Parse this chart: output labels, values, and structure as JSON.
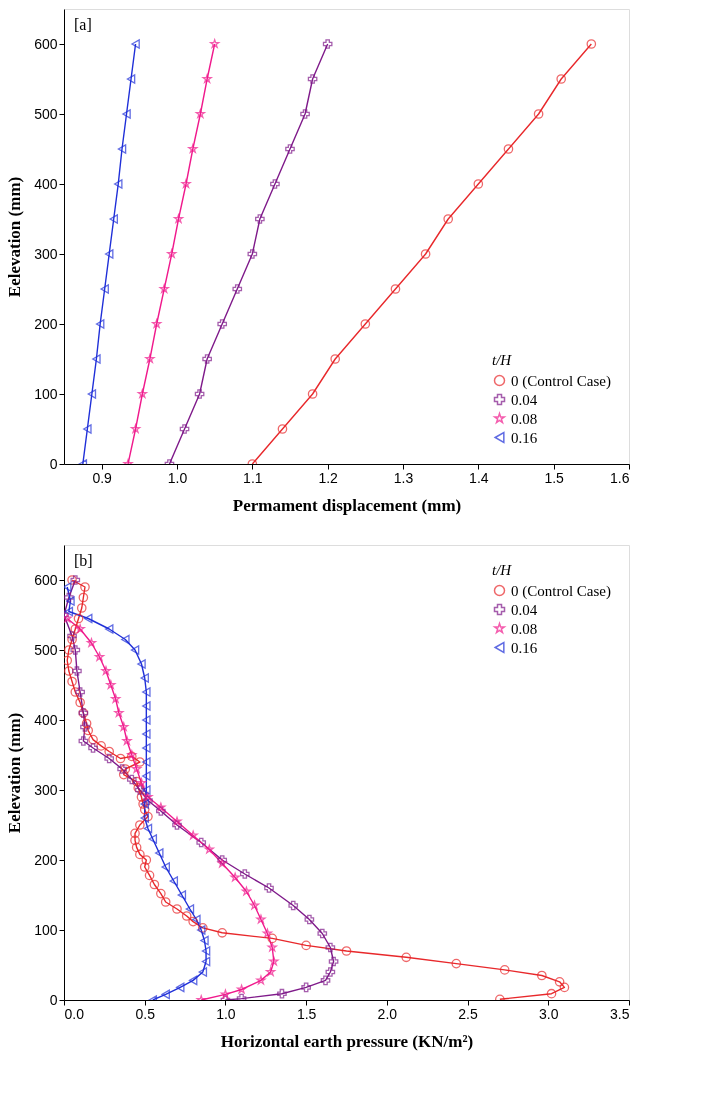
{
  "chart_data": [
    {
      "type": "line",
      "annotations": [
        "[a]"
      ],
      "xlabel": "Permament displacement (mm)",
      "ylabel": "Eelevation (mm)",
      "legend_title": "t/H",
      "legend": "bottom right",
      "grid": false,
      "xlim": [
        0.85,
        1.6
      ],
      "xticks": [
        0.9,
        {
          "value": 1.0,
          "label": "1.0"
        },
        1.1,
        1.2,
        1.3,
        1.4,
        1.5,
        1.6
      ],
      "ylim": [
        0,
        650
      ],
      "yticks": [
        0,
        100,
        200,
        300,
        400,
        500,
        600
      ],
      "series": [
        {
          "name": "0 (Control Case)",
          "color": "#e8282b",
          "marker": "circle",
          "x": [
            1.1,
            1.14,
            1.18,
            1.21,
            1.25,
            1.29,
            1.33,
            1.36,
            1.4,
            1.44,
            1.48,
            1.51,
            1.55
          ],
          "values": [
            0,
            50,
            100,
            150,
            200,
            250,
            300,
            350,
            400,
            450,
            500,
            550,
            600
          ]
        },
        {
          "name": "0.04",
          "color": "#7f1a8a",
          "marker": "cross",
          "x": [
            0.99,
            1.01,
            1.03,
            1.04,
            1.06,
            1.08,
            1.1,
            1.11,
            1.13,
            1.15,
            1.17,
            1.18,
            1.2
          ],
          "values": [
            0,
            50,
            100,
            150,
            200,
            250,
            300,
            350,
            400,
            450,
            500,
            550,
            600
          ]
        },
        {
          "name": "0.08",
          "color": "#f0198c",
          "marker": "star",
          "x": [
            0.935,
            0.945,
            0.954,
            0.964,
            0.973,
            0.983,
            0.993,
            1.002,
            1.012,
            1.021,
            1.031,
            1.04,
            1.05
          ],
          "values": [
            0,
            50,
            100,
            150,
            200,
            250,
            300,
            350,
            400,
            450,
            500,
            550,
            600
          ]
        },
        {
          "name": "0.16",
          "color": "#1f2fd8",
          "marker": "triangle",
          "x": [
            0.875,
            0.881,
            0.887,
            0.893,
            0.898,
            0.904,
            0.91,
            0.916,
            0.922,
            0.927,
            0.933,
            0.939,
            0.945
          ],
          "values": [
            0,
            50,
            100,
            150,
            200,
            250,
            300,
            350,
            400,
            450,
            500,
            550,
            600
          ]
        }
      ]
    },
    {
      "type": "line",
      "annotations": [
        "[b]"
      ],
      "xlabel": "Horizontal earth pressure (KN/m²)",
      "ylabel": "Eelevation (mm)",
      "legend_title": "t/H",
      "legend": "top right",
      "grid": false,
      "xlim": [
        0,
        3.5
      ],
      "xticks": [
        {
          "value": 0,
          "label": "0.0"
        },
        0.5,
        {
          "value": 1,
          "label": "1.0"
        },
        1.5,
        {
          "value": 2,
          "label": "2.0"
        },
        2.5,
        {
          "value": 3,
          "label": "3.0"
        },
        3.5
      ],
      "ylim": [
        0,
        650
      ],
      "yticks": [
        0,
        100,
        200,
        300,
        400,
        500,
        600
      ],
      "series": [
        {
          "name": "0 (Control Case)",
          "color": "#e8282b",
          "marker": "circle",
          "x": [
            0.05,
            0.13,
            0.12,
            0.11,
            0.09,
            0.07,
            0.05,
            0.03,
            0.02,
            0.03,
            0.05,
            0.07,
            0.1,
            0.12,
            0.14,
            0.15,
            0.18,
            0.23,
            0.28,
            0.35,
            0.42,
            0.47,
            0.38,
            0.37,
            0.45,
            0.46,
            0.48,
            0.49,
            0.5,
            0.52,
            0.47,
            0.44,
            0.44,
            0.45,
            0.47,
            0.51,
            0.5,
            0.53,
            0.56,
            0.6,
            0.63,
            0.7,
            0.76,
            0.8,
            0.86,
            0.98,
            1.29,
            1.5,
            1.75,
            2.12,
            2.43,
            2.73,
            2.96,
            3.07,
            3.1,
            3.02,
            2.7
          ],
          "values": [
            600,
            590,
            575,
            560,
            545,
            530,
            515,
            500,
            485,
            470,
            455,
            440,
            425,
            410,
            395,
            385,
            372,
            363,
            355,
            345,
            348,
            340,
            330,
            322,
            312,
            303,
            290,
            280,
            272,
            262,
            250,
            238,
            228,
            218,
            208,
            200,
            190,
            178,
            165,
            152,
            140,
            130,
            120,
            112,
            103,
            96,
            88,
            78,
            70,
            61,
            52,
            43,
            35,
            26,
            18,
            9,
            1
          ]
        },
        {
          "name": "0.04",
          "color": "#7f1a8a",
          "marker": "cross",
          "x": [
            0.07,
            0.03,
            0.0,
            0.05,
            0.07,
            0.08,
            0.1,
            0.12,
            0.13,
            0.12,
            0.18,
            0.28,
            0.36,
            0.42,
            0.47,
            0.52,
            0.6,
            0.7,
            0.85,
            0.98,
            1.12,
            1.27,
            1.42,
            1.52,
            1.6,
            1.65,
            1.67,
            1.65,
            1.62,
            1.5,
            1.35,
            1.1,
            1.0
          ],
          "values": [
            600,
            575,
            550,
            520,
            500,
            470,
            440,
            410,
            390,
            370,
            360,
            345,
            330,
            315,
            300,
            285,
            270,
            250,
            225,
            200,
            180,
            160,
            135,
            115,
            95,
            75,
            55,
            40,
            28,
            18,
            9,
            2,
            0
          ]
        },
        {
          "name": "0.08",
          "color": "#f0198c",
          "marker": "star",
          "x": [
            0.02,
            0.1,
            0.17,
            0.22,
            0.26,
            0.29,
            0.32,
            0.34,
            0.37,
            0.39,
            0.42,
            0.45,
            0.48,
            0.52,
            0.6,
            0.7,
            0.8,
            0.9,
            0.98,
            1.06,
            1.13,
            1.18,
            1.22,
            1.26,
            1.29,
            1.3,
            1.28,
            1.22,
            1.1,
            1.0,
            0.85
          ],
          "values": [
            545,
            530,
            510,
            490,
            470,
            450,
            430,
            410,
            390,
            370,
            350,
            330,
            310,
            290,
            275,
            255,
            235,
            215,
            195,
            175,
            155,
            135,
            115,
            95,
            75,
            55,
            40,
            28,
            15,
            8,
            0
          ]
        },
        {
          "name": "0.16",
          "color": "#1f2fd8",
          "marker": "triangle",
          "x": [
            0.02,
            0.04,
            0.03,
            0.15,
            0.28,
            0.38,
            0.44,
            0.48,
            0.5,
            0.51,
            0.51,
            0.51,
            0.51,
            0.51,
            0.51,
            0.51,
            0.51,
            0.5,
            0.5,
            0.52,
            0.55,
            0.59,
            0.63,
            0.68,
            0.73,
            0.78,
            0.82,
            0.85,
            0.87,
            0.88,
            0.88,
            0.86,
            0.8,
            0.72,
            0.63,
            0.55
          ],
          "values": [
            590,
            570,
            555,
            545,
            530,
            515,
            500,
            480,
            460,
            440,
            420,
            400,
            380,
            360,
            340,
            320,
            300,
            280,
            260,
            245,
            230,
            210,
            190,
            170,
            150,
            130,
            115,
            100,
            85,
            70,
            55,
            40,
            28,
            18,
            8,
            0
          ]
        }
      ]
    }
  ]
}
